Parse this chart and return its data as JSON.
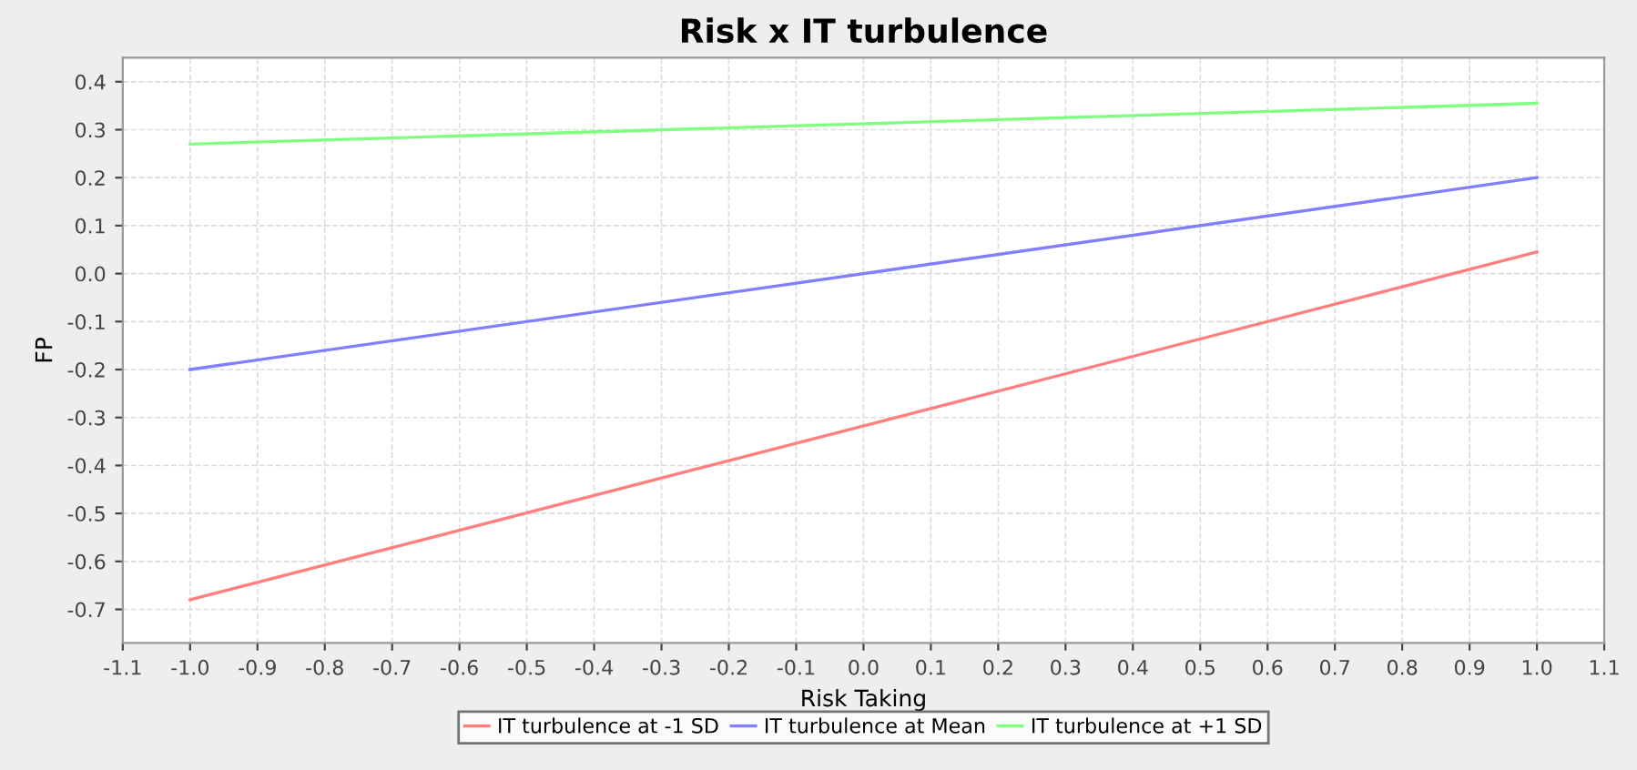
{
  "chart_data": {
    "type": "line",
    "title": "Risk x IT turbulence",
    "xlabel": "Risk Taking",
    "ylabel": "FP",
    "x": [
      -1.0,
      1.0
    ],
    "series": [
      {
        "name": "IT turbulence at -1 SD",
        "color": "#ff7f7f",
        "values": [
          -0.68,
          0.045
        ]
      },
      {
        "name": "IT turbulence at Mean",
        "color": "#7f7fff",
        "values": [
          -0.2,
          0.2
        ]
      },
      {
        "name": "IT turbulence at +1 SD",
        "color": "#7fff7f",
        "values": [
          0.27,
          0.355
        ]
      }
    ],
    "xlim": [
      -1.1,
      1.1
    ],
    "xticks": [
      -1.1,
      {
        "value": -1,
        "label": "-1.0"
      },
      -0.9,
      -0.8,
      -0.7,
      -0.6,
      -0.5,
      -0.4,
      -0.3,
      -0.2,
      -0.1,
      {
        "value": 0,
        "label": "0.0"
      },
      0.1,
      0.2,
      0.3,
      0.4,
      0.5,
      0.6,
      0.7,
      0.8,
      0.9,
      {
        "value": 1,
        "label": "1.0"
      },
      1.1
    ],
    "ylim": [
      -0.77,
      0.45
    ],
    "yticks": [
      -0.7,
      -0.6,
      -0.5,
      -0.4,
      -0.3,
      -0.2,
      -0.1,
      {
        "value": 0,
        "label": "0.0"
      },
      0.1,
      0.2,
      0.3,
      0.4
    ],
    "grid": true,
    "legend": "bottom",
    "marker": "none",
    "line_style": "solid"
  }
}
